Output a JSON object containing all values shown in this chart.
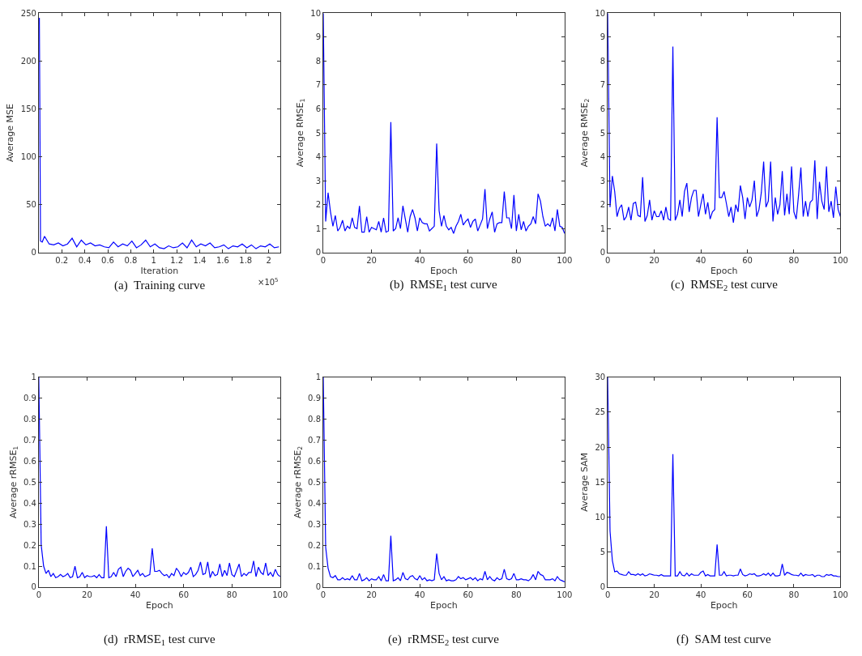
{
  "chart_data": [
    {
      "type": "line",
      "title": "(a)  Training curve",
      "xlabel": "Iteration",
      "ylabel": "Average MSE",
      "annotations": [
        "×10$^{5}$"
      ],
      "x": [
        0.005,
        0.015,
        0.03,
        0.05,
        0.09,
        0.13,
        0.17,
        0.21,
        0.25,
        0.29,
        0.33,
        0.37,
        0.41,
        0.45,
        0.49,
        0.53,
        0.57,
        0.61,
        0.65,
        0.69,
        0.73,
        0.77,
        0.81,
        0.85,
        0.89,
        0.93,
        0.97,
        1.01,
        1.05,
        1.09,
        1.13,
        1.17,
        1.21,
        1.25,
        1.29,
        1.33,
        1.37,
        1.41,
        1.45,
        1.49,
        1.53,
        1.57,
        1.61,
        1.65,
        1.69,
        1.73,
        1.77,
        1.81,
        1.85,
        1.89,
        1.93,
        1.97,
        2.01,
        2.05,
        2.09
      ],
      "series": [
        {
          "color": "#0000ff",
          "values": [
            245,
            12,
            11,
            17,
            9,
            8,
            10,
            7,
            9,
            15,
            6,
            13,
            8,
            10,
            7,
            8,
            6,
            5,
            11,
            6,
            9,
            7,
            12,
            5,
            8,
            13,
            6,
            9,
            5,
            4,
            7,
            5,
            6,
            10,
            5,
            13,
            6,
            9,
            7,
            10,
            5,
            6,
            8,
            4,
            7,
            6,
            9,
            5,
            8,
            4,
            7,
            6,
            9,
            5,
            6
          ]
        }
      ],
      "xlim": [
        0,
        2.1
      ],
      "ylim": [
        0,
        250
      ],
      "xticks": [
        0.2,
        0.4,
        0.6,
        0.8,
        1,
        1.2,
        1.4,
        1.6,
        1.8,
        2
      ],
      "yticks": [
        0,
        50,
        100,
        150,
        200,
        250
      ]
    },
    {
      "type": "line",
      "title": "(b)  RMSE$_{1}$ test curve",
      "xlabel": "Epoch",
      "ylabel": "Average RMSE$_{1}$",
      "x": [
        0,
        1,
        2,
        3,
        4,
        5,
        6,
        7,
        8,
        9,
        10,
        11,
        12,
        13,
        14,
        15,
        16,
        17,
        18,
        19,
        20,
        21,
        22,
        23,
        24,
        25,
        26,
        27,
        28,
        29,
        30,
        31,
        32,
        33,
        34,
        35,
        36,
        37,
        38,
        39,
        40,
        41,
        42,
        43,
        44,
        45,
        46,
        47,
        48,
        49,
        50,
        51,
        52,
        53,
        54,
        55,
        56,
        57,
        58,
        59,
        60,
        61,
        62,
        63,
        64,
        65,
        66,
        67,
        68,
        69,
        70,
        71,
        72,
        73,
        74,
        75,
        76,
        77,
        78,
        79,
        80,
        81,
        82,
        83,
        84,
        85,
        86,
        87,
        88,
        89,
        90,
        91,
        92,
        93,
        94,
        95,
        96,
        97,
        98,
        99,
        100
      ],
      "series": [
        {
          "color": "#0000ff",
          "values": [
            10,
            1.3,
            2.5,
            1.7,
            1.1,
            1.55,
            0.9,
            1.05,
            1.35,
            0.9,
            1.1,
            1.0,
            1.45,
            1.05,
            1.0,
            1.95,
            0.85,
            0.85,
            1.5,
            0.85,
            1.05,
            1.0,
            0.95,
            1.3,
            0.85,
            1.45,
            0.85,
            0.9,
            5.45,
            0.9,
            1.0,
            1.45,
            1.0,
            1.95,
            1.4,
            0.85,
            1.5,
            1.8,
            1.45,
            0.9,
            1.45,
            1.25,
            1.2,
            1.2,
            0.9,
            1.0,
            1.1,
            4.55,
            1.75,
            1.1,
            1.55,
            1.1,
            0.95,
            1.05,
            0.8,
            1.1,
            1.3,
            1.6,
            1.15,
            1.3,
            1.4,
            1.05,
            1.3,
            1.4,
            0.9,
            1.15,
            1.4,
            2.65,
            1.0,
            1.4,
            1.7,
            0.85,
            1.2,
            1.25,
            1.25,
            2.55,
            1.45,
            1.45,
            1.0,
            2.4,
            0.9,
            1.6,
            0.95,
            1.3,
            0.9,
            1.1,
            1.2,
            1.5,
            1.2,
            2.45,
            2.15,
            1.5,
            1.1,
            1.2,
            1.1,
            1.45,
            0.9,
            1.8,
            1.1,
            1.05,
            0.8
          ]
        }
      ],
      "xlim": [
        0,
        100
      ],
      "ylim": [
        0,
        10
      ],
      "xticks": [
        0,
        20,
        40,
        60,
        80,
        100
      ],
      "yticks": [
        0,
        1,
        2,
        3,
        4,
        5,
        6,
        7,
        8,
        9,
        10
      ]
    },
    {
      "type": "line",
      "title": "(c)  RMSE$_{2}$ test curve",
      "xlabel": "Epoch",
      "ylabel": "Average RMSE$_{2}$",
      "x": [
        0,
        1,
        2,
        3,
        4,
        5,
        6,
        7,
        8,
        9,
        10,
        11,
        12,
        13,
        14,
        15,
        16,
        17,
        18,
        19,
        20,
        21,
        22,
        23,
        24,
        25,
        26,
        27,
        28,
        29,
        30,
        31,
        32,
        33,
        34,
        35,
        36,
        37,
        38,
        39,
        40,
        41,
        42,
        43,
        44,
        45,
        46,
        47,
        48,
        49,
        50,
        51,
        52,
        53,
        54,
        55,
        56,
        57,
        58,
        59,
        60,
        61,
        62,
        63,
        64,
        65,
        66,
        67,
        68,
        69,
        70,
        71,
        72,
        73,
        74,
        75,
        76,
        77,
        78,
        79,
        80,
        81,
        82,
        83,
        84,
        85,
        86,
        87,
        88,
        89,
        90,
        91,
        92,
        93,
        94,
        95,
        96,
        97,
        98,
        99,
        100
      ],
      "series": [
        {
          "color": "#0000ff",
          "values": [
            10,
            1.9,
            3.2,
            2.55,
            1.5,
            1.85,
            2.0,
            1.35,
            1.5,
            1.9,
            1.35,
            2.05,
            2.1,
            1.55,
            1.5,
            3.15,
            1.3,
            1.55,
            2.2,
            1.35,
            1.75,
            1.5,
            1.5,
            1.75,
            1.35,
            1.9,
            1.4,
            1.35,
            8.6,
            1.35,
            1.6,
            2.2,
            1.5,
            2.55,
            2.9,
            1.7,
            2.3,
            2.6,
            2.6,
            1.5,
            2.0,
            2.45,
            1.6,
            2.1,
            1.4,
            1.7,
            1.8,
            5.65,
            2.3,
            2.3,
            2.55,
            2.05,
            1.5,
            1.9,
            1.25,
            2.0,
            1.7,
            2.8,
            2.3,
            1.4,
            2.3,
            1.9,
            2.2,
            3.0,
            1.5,
            1.8,
            2.5,
            3.8,
            1.9,
            2.15,
            3.8,
            1.3,
            2.3,
            1.6,
            2.0,
            3.4,
            1.55,
            2.45,
            1.6,
            3.6,
            1.7,
            1.4,
            2.4,
            3.55,
            1.5,
            2.15,
            1.5,
            2.1,
            2.2,
            3.85,
            1.4,
            2.95,
            2.15,
            1.8,
            3.6,
            1.7,
            2.15,
            1.45,
            2.75,
            1.8,
            1.5
          ]
        }
      ],
      "xlim": [
        0,
        100
      ],
      "ylim": [
        0,
        10
      ],
      "xticks": [
        0,
        20,
        40,
        60,
        80,
        100
      ],
      "yticks": [
        0,
        1,
        2,
        3,
        4,
        5,
        6,
        7,
        8,
        9,
        10
      ]
    },
    {
      "type": "line",
      "title": "(d)  rRMSE$_{1}$ test curve",
      "xlabel": "Epoch",
      "ylabel": "Average rRMSE$_{1}$",
      "x": [
        0,
        1,
        2,
        3,
        4,
        5,
        6,
        7,
        8,
        9,
        10,
        11,
        12,
        13,
        14,
        15,
        16,
        17,
        18,
        19,
        20,
        21,
        22,
        23,
        24,
        25,
        26,
        27,
        28,
        29,
        30,
        31,
        32,
        33,
        34,
        35,
        36,
        37,
        38,
        39,
        40,
        41,
        42,
        43,
        44,
        45,
        46,
        47,
        48,
        49,
        50,
        51,
        52,
        53,
        54,
        55,
        56,
        57,
        58,
        59,
        60,
        61,
        62,
        63,
        64,
        65,
        66,
        67,
        68,
        69,
        70,
        71,
        72,
        73,
        74,
        75,
        76,
        77,
        78,
        79,
        80,
        81,
        82,
        83,
        84,
        85,
        86,
        87,
        88,
        89,
        90,
        91,
        92,
        93,
        94,
        95,
        96,
        97,
        98,
        99,
        100
      ],
      "series": [
        {
          "color": "#0000ff",
          "values": [
            1,
            0.2,
            0.1,
            0.065,
            0.08,
            0.05,
            0.065,
            0.045,
            0.05,
            0.06,
            0.05,
            0.055,
            0.065,
            0.045,
            0.05,
            0.1,
            0.045,
            0.05,
            0.07,
            0.045,
            0.055,
            0.05,
            0.05,
            0.055,
            0.045,
            0.06,
            0.045,
            0.045,
            0.29,
            0.045,
            0.05,
            0.07,
            0.05,
            0.085,
            0.095,
            0.05,
            0.075,
            0.09,
            0.08,
            0.05,
            0.065,
            0.08,
            0.055,
            0.065,
            0.05,
            0.055,
            0.06,
            0.185,
            0.075,
            0.075,
            0.08,
            0.065,
            0.055,
            0.06,
            0.045,
            0.065,
            0.055,
            0.09,
            0.075,
            0.05,
            0.07,
            0.06,
            0.07,
            0.095,
            0.05,
            0.06,
            0.08,
            0.12,
            0.06,
            0.065,
            0.12,
            0.045,
            0.075,
            0.055,
            0.06,
            0.11,
            0.05,
            0.08,
            0.055,
            0.115,
            0.06,
            0.05,
            0.08,
            0.11,
            0.05,
            0.065,
            0.055,
            0.07,
            0.07,
            0.125,
            0.05,
            0.095,
            0.07,
            0.06,
            0.115,
            0.055,
            0.07,
            0.05,
            0.085,
            0.06,
            0.05
          ]
        }
      ],
      "xlim": [
        0,
        100
      ],
      "ylim": [
        0,
        1
      ],
      "xticks": [
        0,
        20,
        40,
        60,
        80,
        100
      ],
      "yticks": [
        0,
        0.1,
        0.2,
        0.3,
        0.4,
        0.5,
        0.6,
        0.7,
        0.8,
        0.9,
        1
      ]
    },
    {
      "type": "line",
      "title": "(e)  rRMSE$_{2}$ test curve",
      "xlabel": "Epoch",
      "ylabel": "Average rRMSE$_{2}$",
      "x": [
        0,
        1,
        2,
        3,
        4,
        5,
        6,
        7,
        8,
        9,
        10,
        11,
        12,
        13,
        14,
        15,
        16,
        17,
        18,
        19,
        20,
        21,
        22,
        23,
        24,
        25,
        26,
        27,
        28,
        29,
        30,
        31,
        32,
        33,
        34,
        35,
        36,
        37,
        38,
        39,
        40,
        41,
        42,
        43,
        44,
        45,
        46,
        47,
        48,
        49,
        50,
        51,
        52,
        53,
        54,
        55,
        56,
        57,
        58,
        59,
        60,
        61,
        62,
        63,
        64,
        65,
        66,
        67,
        68,
        69,
        70,
        71,
        72,
        73,
        74,
        75,
        76,
        77,
        78,
        79,
        80,
        81,
        82,
        83,
        84,
        85,
        86,
        87,
        88,
        89,
        90,
        91,
        92,
        93,
        94,
        95,
        96,
        97,
        98,
        99,
        100
      ],
      "series": [
        {
          "color": "#0000ff",
          "values": [
            1,
            0.19,
            0.09,
            0.05,
            0.045,
            0.055,
            0.035,
            0.035,
            0.045,
            0.035,
            0.04,
            0.035,
            0.055,
            0.035,
            0.035,
            0.065,
            0.03,
            0.035,
            0.045,
            0.03,
            0.04,
            0.035,
            0.035,
            0.05,
            0.03,
            0.06,
            0.03,
            0.03,
            0.245,
            0.03,
            0.035,
            0.045,
            0.03,
            0.07,
            0.04,
            0.035,
            0.05,
            0.055,
            0.04,
            0.035,
            0.055,
            0.035,
            0.045,
            0.03,
            0.035,
            0.03,
            0.035,
            0.16,
            0.065,
            0.035,
            0.05,
            0.03,
            0.035,
            0.03,
            0.03,
            0.035,
            0.05,
            0.04,
            0.045,
            0.035,
            0.04,
            0.045,
            0.035,
            0.045,
            0.03,
            0.04,
            0.035,
            0.075,
            0.035,
            0.05,
            0.035,
            0.03,
            0.045,
            0.035,
            0.04,
            0.085,
            0.04,
            0.035,
            0.04,
            0.065,
            0.035,
            0.035,
            0.04,
            0.035,
            0.035,
            0.03,
            0.04,
            0.06,
            0.035,
            0.075,
            0.06,
            0.055,
            0.035,
            0.035,
            0.035,
            0.04,
            0.03,
            0.05,
            0.035,
            0.03,
            0.025
          ]
        }
      ],
      "xlim": [
        0,
        100
      ],
      "ylim": [
        0,
        1
      ],
      "xticks": [
        0,
        20,
        40,
        60,
        80,
        100
      ],
      "yticks": [
        0,
        0.1,
        0.2,
        0.3,
        0.4,
        0.5,
        0.6,
        0.7,
        0.8,
        0.9,
        1
      ]
    },
    {
      "type": "line",
      "title": "(f)  SAM test curve",
      "xlabel": "Epoch",
      "ylabel": "Average SAM",
      "x": [
        0,
        1,
        2,
        3,
        4,
        5,
        6,
        7,
        8,
        9,
        10,
        11,
        12,
        13,
        14,
        15,
        16,
        17,
        18,
        19,
        20,
        21,
        22,
        23,
        24,
        25,
        26,
        27,
        28,
        29,
        30,
        31,
        32,
        33,
        34,
        35,
        36,
        37,
        38,
        39,
        40,
        41,
        42,
        43,
        44,
        45,
        46,
        47,
        48,
        49,
        50,
        51,
        52,
        53,
        54,
        55,
        56,
        57,
        58,
        59,
        60,
        61,
        62,
        63,
        64,
        65,
        66,
        67,
        68,
        69,
        70,
        71,
        72,
        73,
        74,
        75,
        76,
        77,
        78,
        79,
        80,
        81,
        82,
        83,
        84,
        85,
        86,
        87,
        88,
        89,
        90,
        91,
        92,
        93,
        94,
        95,
        96,
        97,
        98,
        99,
        100
      ],
      "series": [
        {
          "color": "#0000ff",
          "values": [
            30,
            8,
            3.8,
            2.2,
            2.3,
            1.9,
            1.8,
            1.7,
            1.7,
            2.2,
            1.8,
            1.8,
            1.7,
            1.9,
            1.7,
            1.9,
            1.6,
            1.7,
            1.9,
            1.8,
            1.7,
            1.7,
            1.6,
            1.8,
            1.6,
            1.6,
            1.6,
            1.6,
            19,
            1.6,
            1.6,
            2.2,
            1.7,
            1.6,
            2.0,
            1.6,
            1.9,
            1.7,
            1.7,
            1.7,
            2.1,
            2.3,
            1.6,
            1.8,
            1.6,
            1.6,
            1.6,
            6.1,
            1.7,
            1.7,
            2.2,
            1.6,
            1.7,
            1.7,
            1.6,
            1.7,
            1.7,
            2.6,
            1.8,
            1.6,
            1.7,
            1.9,
            1.8,
            1.9,
            1.6,
            1.6,
            1.7,
            1.9,
            1.7,
            2.0,
            1.6,
            2.0,
            1.6,
            1.6,
            1.7,
            3.3,
            1.7,
            2.1,
            2.0,
            1.8,
            1.7,
            1.7,
            1.6,
            2.0,
            1.6,
            1.8,
            1.7,
            1.7,
            1.8,
            1.5,
            1.7,
            1.7,
            1.5,
            1.5,
            1.8,
            1.7,
            1.8,
            1.6,
            1.6,
            1.5,
            1.5
          ]
        }
      ],
      "xlim": [
        0,
        100
      ],
      "ylim": [
        0,
        30
      ],
      "xticks": [
        0,
        20,
        40,
        60,
        80,
        100
      ],
      "yticks": [
        0,
        5,
        10,
        15,
        20,
        25,
        30
      ]
    }
  ]
}
